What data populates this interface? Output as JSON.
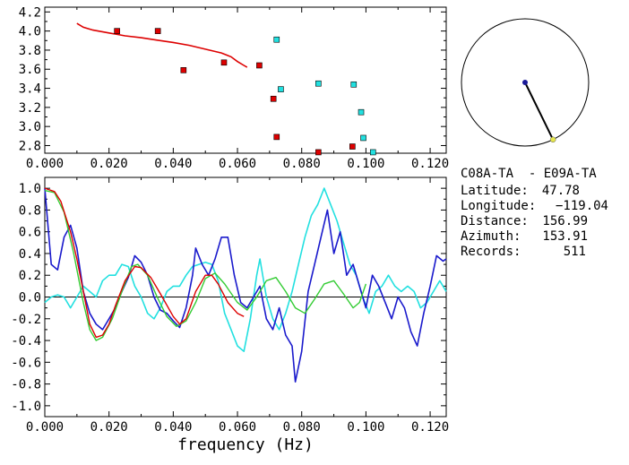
{
  "colors": {
    "red": "#dd0000",
    "green": "#33cc33",
    "blue": "#1a1acc",
    "cyan": "#22e0e0",
    "axis": "#000000",
    "dot_blue": "#1a1a99",
    "dot_yellow": "#e6e64d"
  },
  "info": {
    "pair": "C08A-TA  - E09A-TA",
    "latitude": {
      "label": "Latitude:",
      "value": "47.78"
    },
    "longitude": {
      "label": "Longitude:",
      "value": "−119.04"
    },
    "distance": {
      "label": "Distance:",
      "value": "156.99"
    },
    "azimuth": {
      "label": "Azimuth:",
      "value": "153.91"
    },
    "records": {
      "label": "Records:",
      "value": "511"
    }
  },
  "compass": {
    "azimuth_deg": 153.91
  },
  "chart_data": [
    {
      "type": "scatter",
      "xlim": [
        0.0,
        0.125
      ],
      "ylim": [
        2.72,
        4.25
      ],
      "x_ticks": [
        "0.000",
        "0.020",
        "0.040",
        "0.060",
        "0.080",
        "0.100",
        "0.120"
      ],
      "y_ticks": [
        "2.8",
        "3.0",
        "3.2",
        "3.4",
        "3.6",
        "3.8",
        "4.0",
        "4.2"
      ],
      "series": [
        {
          "kind": "curve",
          "color": "red",
          "points": [
            [
              0.01,
              4.08
            ],
            [
              0.012,
              4.04
            ],
            [
              0.015,
              4.01
            ],
            [
              0.02,
              3.98
            ],
            [
              0.025,
              3.95
            ],
            [
              0.03,
              3.93
            ],
            [
              0.035,
              3.905
            ],
            [
              0.04,
              3.88
            ],
            [
              0.045,
              3.85
            ],
            [
              0.05,
              3.81
            ],
            [
              0.055,
              3.77
            ],
            [
              0.058,
              3.73
            ],
            [
              0.06,
              3.68
            ],
            [
              0.062,
              3.64
            ],
            [
              0.063,
              3.62
            ]
          ]
        },
        {
          "kind": "markers",
          "color": "red",
          "points": [
            [
              0.0225,
              4.0
            ],
            [
              0.0352,
              4.0
            ],
            [
              0.0432,
              3.59
            ],
            [
              0.0558,
              3.67
            ],
            [
              0.0668,
              3.64
            ],
            [
              0.0712,
              3.29
            ],
            [
              0.0722,
              2.89
            ],
            [
              0.0852,
              2.73
            ],
            [
              0.0958,
              2.79
            ]
          ]
        },
        {
          "kind": "markers",
          "color": "cyan",
          "points": [
            [
              0.0722,
              3.91
            ],
            [
              0.0735,
              3.39
            ],
            [
              0.0852,
              3.45
            ],
            [
              0.0962,
              3.44
            ],
            [
              0.0985,
              3.15
            ],
            [
              0.0992,
              2.88
            ],
            [
              0.1022,
              2.73
            ]
          ]
        }
      ]
    },
    {
      "type": "line",
      "xlabel": "frequency (Hz)",
      "xlim": [
        0.0,
        0.125
      ],
      "ylim": [
        -1.1,
        1.1
      ],
      "x_ticks": [
        "0.000",
        "0.020",
        "0.040",
        "0.060",
        "0.080",
        "0.100",
        "0.120"
      ],
      "y_ticks": [
        "1.0",
        "0.8",
        "0.6",
        "0.4",
        "0.2",
        "0.0",
        "-0.2",
        "-0.4",
        "-0.6",
        "-0.8",
        "-1.0"
      ],
      "series": [
        {
          "color": "red",
          "points": [
            [
              0.0,
              1.0
            ],
            [
              0.003,
              0.97
            ],
            [
              0.005,
              0.88
            ],
            [
              0.008,
              0.6
            ],
            [
              0.01,
              0.35
            ],
            [
              0.012,
              0.05
            ],
            [
              0.014,
              -0.25
            ],
            [
              0.016,
              -0.37
            ],
            [
              0.018,
              -0.35
            ],
            [
              0.02,
              -0.25
            ],
            [
              0.022,
              -0.08
            ],
            [
              0.025,
              0.15
            ],
            [
              0.028,
              0.28
            ],
            [
              0.03,
              0.27
            ],
            [
              0.033,
              0.18
            ],
            [
              0.036,
              0.03
            ],
            [
              0.04,
              -0.18
            ],
            [
              0.042,
              -0.25
            ],
            [
              0.044,
              -0.2
            ],
            [
              0.047,
              0.05
            ],
            [
              0.05,
              0.2
            ],
            [
              0.052,
              0.2
            ],
            [
              0.054,
              0.12
            ],
            [
              0.057,
              -0.05
            ],
            [
              0.06,
              -0.15
            ],
            [
              0.062,
              -0.18
            ]
          ]
        },
        {
          "color": "green",
          "points": [
            [
              0.0,
              0.98
            ],
            [
              0.003,
              0.96
            ],
            [
              0.006,
              0.78
            ],
            [
              0.009,
              0.4
            ],
            [
              0.012,
              -0.05
            ],
            [
              0.014,
              -0.3
            ],
            [
              0.016,
              -0.4
            ],
            [
              0.018,
              -0.37
            ],
            [
              0.021,
              -0.2
            ],
            [
              0.024,
              0.05
            ],
            [
              0.027,
              0.28
            ],
            [
              0.029,
              0.3
            ],
            [
              0.032,
              0.2
            ],
            [
              0.035,
              0.0
            ],
            [
              0.038,
              -0.18
            ],
            [
              0.041,
              -0.27
            ],
            [
              0.044,
              -0.22
            ],
            [
              0.047,
              -0.05
            ],
            [
              0.05,
              0.17
            ],
            [
              0.053,
              0.22
            ],
            [
              0.056,
              0.12
            ],
            [
              0.06,
              -0.05
            ],
            [
              0.063,
              -0.12
            ],
            [
              0.066,
              0.0
            ],
            [
              0.069,
              0.15
            ],
            [
              0.072,
              0.18
            ],
            [
              0.075,
              0.05
            ],
            [
              0.078,
              -0.1
            ],
            [
              0.081,
              -0.15
            ],
            [
              0.084,
              -0.02
            ],
            [
              0.087,
              0.12
            ],
            [
              0.09,
              0.15
            ],
            [
              0.093,
              0.03
            ],
            [
              0.096,
              -0.1
            ],
            [
              0.098,
              -0.05
            ],
            [
              0.1,
              0.12
            ]
          ]
        },
        {
          "color": "blue",
          "points": [
            [
              0.0,
              1.0
            ],
            [
              0.002,
              0.3
            ],
            [
              0.004,
              0.25
            ],
            [
              0.006,
              0.55
            ],
            [
              0.008,
              0.66
            ],
            [
              0.01,
              0.45
            ],
            [
              0.012,
              0.05
            ],
            [
              0.014,
              -0.15
            ],
            [
              0.016,
              -0.25
            ],
            [
              0.018,
              -0.3
            ],
            [
              0.02,
              -0.2
            ],
            [
              0.022,
              -0.1
            ],
            [
              0.024,
              0.05
            ],
            [
              0.026,
              0.18
            ],
            [
              0.028,
              0.38
            ],
            [
              0.03,
              0.32
            ],
            [
              0.032,
              0.2
            ],
            [
              0.034,
              0.0
            ],
            [
              0.036,
              -0.12
            ],
            [
              0.038,
              -0.15
            ],
            [
              0.04,
              -0.22
            ],
            [
              0.042,
              -0.28
            ],
            [
              0.044,
              -0.1
            ],
            [
              0.046,
              0.2
            ],
            [
              0.047,
              0.45
            ],
            [
              0.049,
              0.3
            ],
            [
              0.051,
              0.2
            ],
            [
              0.053,
              0.35
            ],
            [
              0.055,
              0.55
            ],
            [
              0.057,
              0.55
            ],
            [
              0.059,
              0.2
            ],
            [
              0.061,
              -0.05
            ],
            [
              0.063,
              -0.1
            ],
            [
              0.065,
              0.0
            ],
            [
              0.067,
              0.1
            ],
            [
              0.069,
              -0.2
            ],
            [
              0.071,
              -0.3
            ],
            [
              0.073,
              -0.1
            ],
            [
              0.075,
              -0.35
            ],
            [
              0.077,
              -0.45
            ],
            [
              0.078,
              -0.78
            ],
            [
              0.08,
              -0.5
            ],
            [
              0.082,
              0.05
            ],
            [
              0.084,
              0.3
            ],
            [
              0.086,
              0.55
            ],
            [
              0.088,
              0.8
            ],
            [
              0.09,
              0.4
            ],
            [
              0.092,
              0.6
            ],
            [
              0.094,
              0.2
            ],
            [
              0.096,
              0.3
            ],
            [
              0.098,
              0.1
            ],
            [
              0.1,
              -0.1
            ],
            [
              0.102,
              0.2
            ],
            [
              0.104,
              0.1
            ],
            [
              0.106,
              -0.05
            ],
            [
              0.108,
              -0.2
            ],
            [
              0.11,
              0.0
            ],
            [
              0.112,
              -0.1
            ],
            [
              0.114,
              -0.32
            ],
            [
              0.116,
              -0.45
            ],
            [
              0.118,
              -0.15
            ],
            [
              0.12,
              0.1
            ],
            [
              0.122,
              0.38
            ],
            [
              0.124,
              0.33
            ],
            [
              0.125,
              0.35
            ]
          ]
        },
        {
          "color": "cyan",
          "points": [
            [
              0.0,
              -0.05
            ],
            [
              0.002,
              0.0
            ],
            [
              0.004,
              0.02
            ],
            [
              0.006,
              0.0
            ],
            [
              0.008,
              -0.1
            ],
            [
              0.01,
              0.0
            ],
            [
              0.012,
              0.1
            ],
            [
              0.014,
              0.05
            ],
            [
              0.016,
              0.0
            ],
            [
              0.018,
              0.15
            ],
            [
              0.02,
              0.2
            ],
            [
              0.022,
              0.2
            ],
            [
              0.024,
              0.3
            ],
            [
              0.026,
              0.28
            ],
            [
              0.028,
              0.1
            ],
            [
              0.03,
              0.0
            ],
            [
              0.032,
              -0.15
            ],
            [
              0.034,
              -0.2
            ],
            [
              0.036,
              -0.1
            ],
            [
              0.038,
              0.05
            ],
            [
              0.04,
              0.1
            ],
            [
              0.042,
              0.1
            ],
            [
              0.044,
              0.2
            ],
            [
              0.046,
              0.28
            ],
            [
              0.048,
              0.3
            ],
            [
              0.05,
              0.32
            ],
            [
              0.052,
              0.3
            ],
            [
              0.054,
              0.15
            ],
            [
              0.056,
              -0.15
            ],
            [
              0.058,
              -0.3
            ],
            [
              0.06,
              -0.45
            ],
            [
              0.062,
              -0.5
            ],
            [
              0.064,
              -0.2
            ],
            [
              0.066,
              0.2
            ],
            [
              0.067,
              0.35
            ],
            [
              0.069,
              0.0
            ],
            [
              0.071,
              -0.2
            ],
            [
              0.073,
              -0.3
            ],
            [
              0.075,
              -0.15
            ],
            [
              0.077,
              0.05
            ],
            [
              0.079,
              0.3
            ],
            [
              0.081,
              0.55
            ],
            [
              0.083,
              0.75
            ],
            [
              0.085,
              0.85
            ],
            [
              0.087,
              1.0
            ],
            [
              0.089,
              0.85
            ],
            [
              0.091,
              0.7
            ],
            [
              0.093,
              0.5
            ],
            [
              0.095,
              0.3
            ],
            [
              0.097,
              0.2
            ],
            [
              0.099,
              0.0
            ],
            [
              0.101,
              -0.15
            ],
            [
              0.103,
              0.05
            ],
            [
              0.105,
              0.1
            ],
            [
              0.107,
              0.2
            ],
            [
              0.109,
              0.1
            ],
            [
              0.111,
              0.05
            ],
            [
              0.113,
              0.1
            ],
            [
              0.115,
              0.05
            ],
            [
              0.117,
              -0.1
            ],
            [
              0.119,
              -0.05
            ],
            [
              0.121,
              0.05
            ],
            [
              0.123,
              0.15
            ],
            [
              0.125,
              0.05
            ]
          ]
        }
      ]
    }
  ]
}
